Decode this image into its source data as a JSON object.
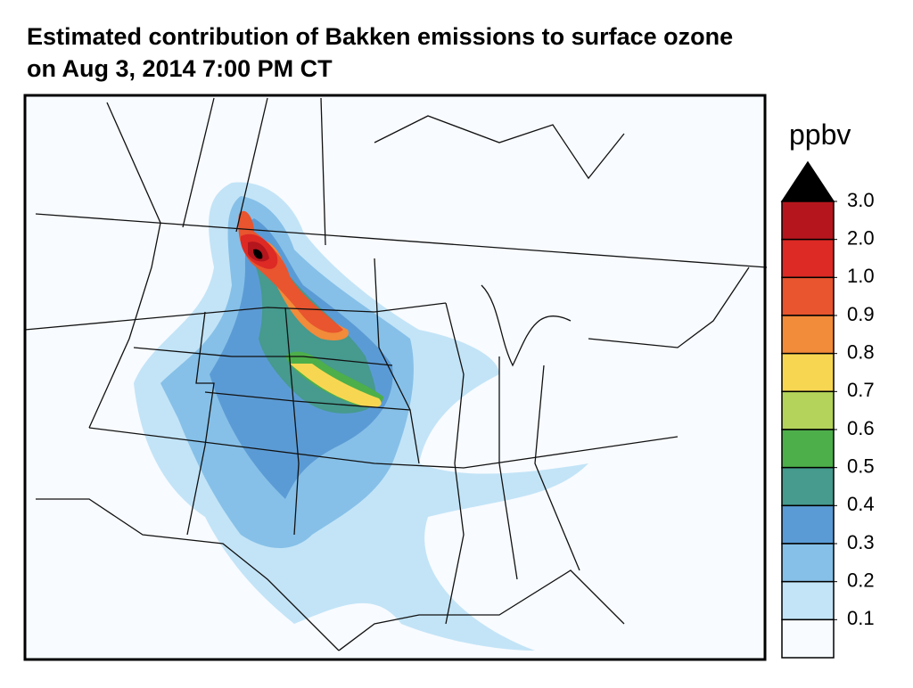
{
  "title": [
    "Estimated contribution of Bakken emissions to surface ozone",
    "on Aug 3, 2014 7:00 PM CT"
  ],
  "colorbar": {
    "unit": "ppbv",
    "levels": [
      {
        "value": 3.0,
        "label": "3.0"
      },
      {
        "value": 2.0,
        "label": "2.0"
      },
      {
        "value": 1.0,
        "label": "1.0"
      },
      {
        "value": 0.9,
        "label": "0.9"
      },
      {
        "value": 0.8,
        "label": "0.8"
      },
      {
        "value": 0.7,
        "label": "0.7"
      },
      {
        "value": 0.6,
        "label": "0.6"
      },
      {
        "value": 0.5,
        "label": "0.5"
      },
      {
        "value": 0.4,
        "label": "0.4"
      },
      {
        "value": 0.3,
        "label": "0.3"
      },
      {
        "value": 0.2,
        "label": "0.2"
      },
      {
        "value": 0.1,
        "label": "0.1"
      }
    ],
    "over_color": "#000000",
    "colors": [
      "#b5161d",
      "#dd2a25",
      "#e8552e",
      "#f28b3a",
      "#f7d752",
      "#b3d35a",
      "#4daf4a",
      "#469a8e",
      "#5b9bd5",
      "#86c0e8",
      "#c3e4f7",
      "#f8fbff"
    ]
  }
}
